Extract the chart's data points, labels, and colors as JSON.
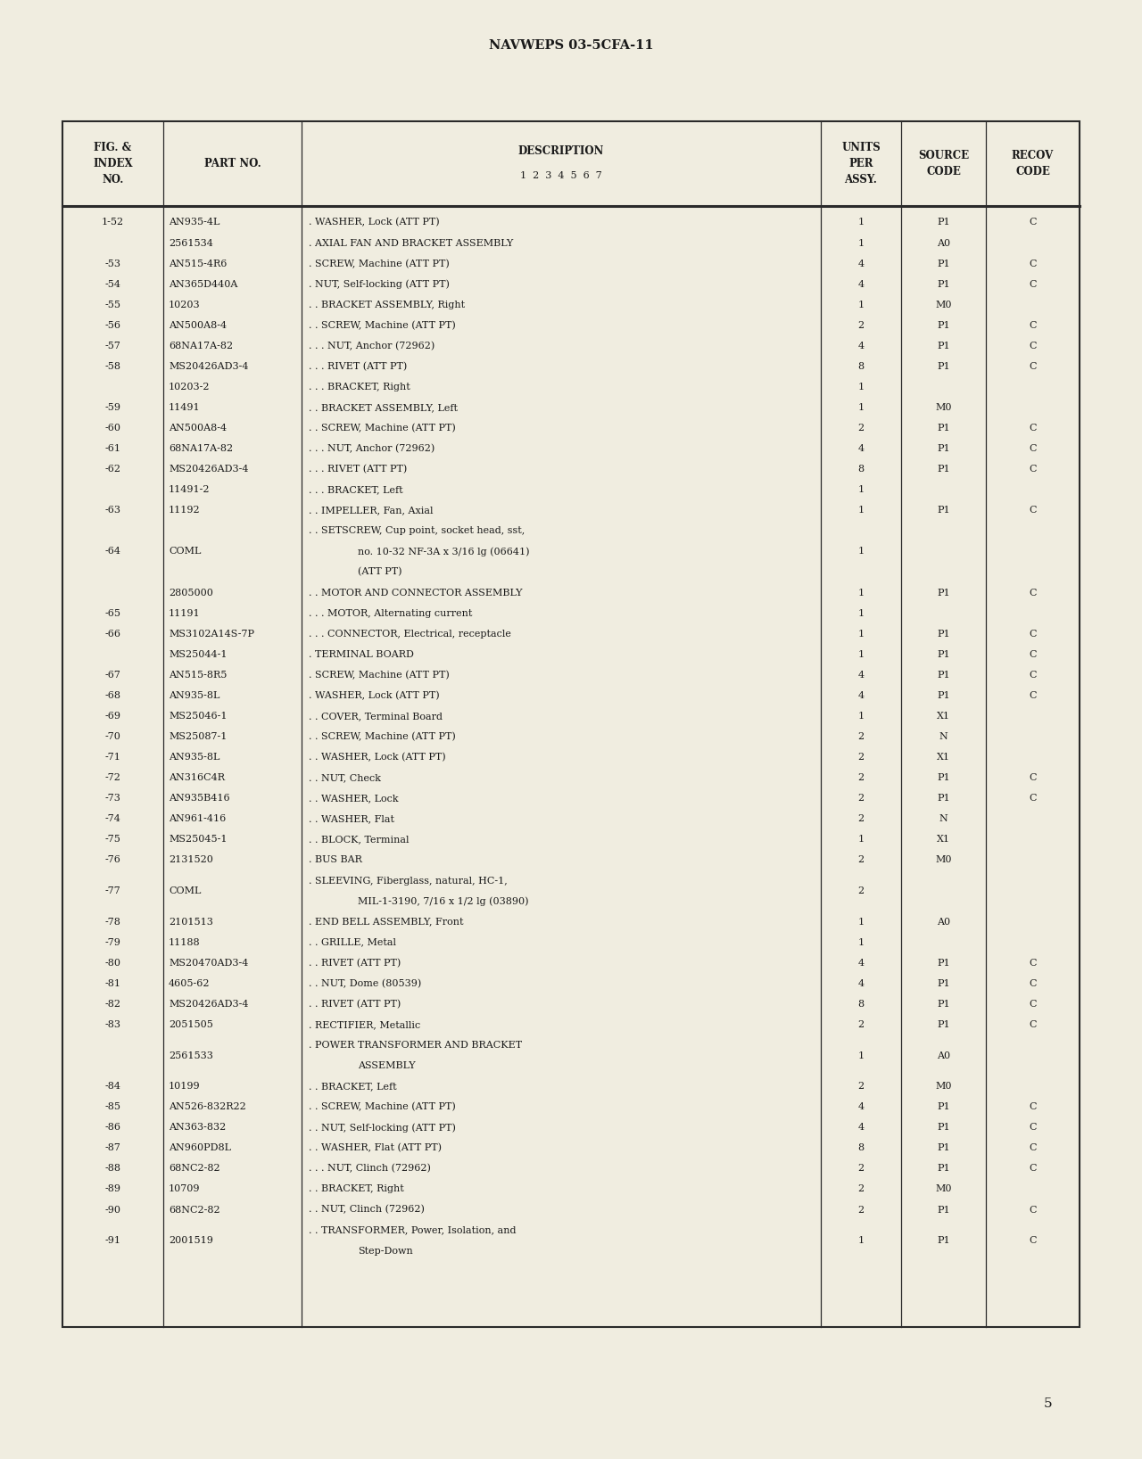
{
  "page_header": "NAVWEPS 03-5CFA-11",
  "page_number": "5",
  "bg_color": "#f0ede0",
  "text_color": "#1a1a1a",
  "rows": [
    {
      "fig": "1-52",
      "part": "AN935-4L",
      "indent": 0,
      "desc": [
        "WASHER, Lock (ATT PT)"
      ],
      "units": "1",
      "source": "P1",
      "recov": "C"
    },
    {
      "fig": "",
      "part": "2561534",
      "indent": 0,
      "desc": [
        "AXIAL FAN AND BRACKET ASSEMBLY"
      ],
      "units": "1",
      "source": "A0",
      "recov": ""
    },
    {
      "fig": "-53",
      "part": "AN515-4R6",
      "indent": 0,
      "desc": [
        "SCREW, Machine (ATT PT)"
      ],
      "units": "4",
      "source": "P1",
      "recov": "C"
    },
    {
      "fig": "-54",
      "part": "AN365D440A",
      "indent": 0,
      "desc": [
        "NUT, Self-locking (ATT PT)"
      ],
      "units": "4",
      "source": "P1",
      "recov": "C"
    },
    {
      "fig": "-55",
      "part": "10203",
      "indent": 1,
      "desc": [
        "BRACKET ASSEMBLY, Right"
      ],
      "units": "1",
      "source": "M0",
      "recov": ""
    },
    {
      "fig": "-56",
      "part": "AN500A8-4",
      "indent": 1,
      "desc": [
        "SCREW, Machine (ATT PT)"
      ],
      "units": "2",
      "source": "P1",
      "recov": "C"
    },
    {
      "fig": "-57",
      "part": "68NA17A-82",
      "indent": 2,
      "desc": [
        "NUT, Anchor (72962)"
      ],
      "units": "4",
      "source": "P1",
      "recov": "C"
    },
    {
      "fig": "-58",
      "part": "MS20426AD3-4",
      "indent": 2,
      "desc": [
        "RIVET (ATT PT)"
      ],
      "units": "8",
      "source": "P1",
      "recov": "C"
    },
    {
      "fig": "",
      "part": "10203-2",
      "indent": 2,
      "desc": [
        "BRACKET, Right"
      ],
      "units": "1",
      "source": "",
      "recov": ""
    },
    {
      "fig": "-59",
      "part": "11491",
      "indent": 1,
      "desc": [
        "BRACKET ASSEMBLY, Left"
      ],
      "units": "1",
      "source": "M0",
      "recov": ""
    },
    {
      "fig": "-60",
      "part": "AN500A8-4",
      "indent": 1,
      "desc": [
        "SCREW, Machine (ATT PT)"
      ],
      "units": "2",
      "source": "P1",
      "recov": "C"
    },
    {
      "fig": "-61",
      "part": "68NA17A-82",
      "indent": 2,
      "desc": [
        "NUT, Anchor (72962)"
      ],
      "units": "4",
      "source": "P1",
      "recov": "C"
    },
    {
      "fig": "-62",
      "part": "MS20426AD3-4",
      "indent": 2,
      "desc": [
        "RIVET (ATT PT)"
      ],
      "units": "8",
      "source": "P1",
      "recov": "C"
    },
    {
      "fig": "",
      "part": "11491-2",
      "indent": 2,
      "desc": [
        "BRACKET, Left"
      ],
      "units": "1",
      "source": "",
      "recov": ""
    },
    {
      "fig": "-63",
      "part": "11192",
      "indent": 1,
      "desc": [
        "IMPELLER, Fan, Axial"
      ],
      "units": "1",
      "source": "P1",
      "recov": "C"
    },
    {
      "fig": "-64",
      "part": "COML",
      "indent": 1,
      "desc": [
        "SETSCREW, Cup point, socket head, sst,",
        "no. 10-32 NF-3A x 3/16 lg (06641)",
        "(ATT PT)"
      ],
      "units": "1",
      "source": "",
      "recov": ""
    },
    {
      "fig": "",
      "part": "2805000",
      "indent": 1,
      "desc": [
        "MOTOR AND CONNECTOR ASSEMBLY"
      ],
      "units": "1",
      "source": "P1",
      "recov": "C"
    },
    {
      "fig": "-65",
      "part": "11191",
      "indent": 2,
      "desc": [
        "MOTOR, Alternating current"
      ],
      "units": "1",
      "source": "",
      "recov": ""
    },
    {
      "fig": "-66",
      "part": "MS3102A14S-7P",
      "indent": 2,
      "desc": [
        "CONNECTOR, Electrical, receptacle"
      ],
      "units": "1",
      "source": "P1",
      "recov": "C"
    },
    {
      "fig": "",
      "part": "MS25044-1",
      "indent": 0,
      "desc": [
        "TERMINAL BOARD"
      ],
      "units": "1",
      "source": "P1",
      "recov": "C"
    },
    {
      "fig": "-67",
      "part": "AN515-8R5",
      "indent": 0,
      "desc": [
        "SCREW, Machine (ATT PT)"
      ],
      "units": "4",
      "source": "P1",
      "recov": "C"
    },
    {
      "fig": "-68",
      "part": "AN935-8L",
      "indent": 0,
      "desc": [
        "WASHER, Lock (ATT PT)"
      ],
      "units": "4",
      "source": "P1",
      "recov": "C"
    },
    {
      "fig": "-69",
      "part": "MS25046-1",
      "indent": 1,
      "desc": [
        "COVER, Terminal Board"
      ],
      "units": "1",
      "source": "X1",
      "recov": ""
    },
    {
      "fig": "-70",
      "part": "MS25087-1",
      "indent": 1,
      "desc": [
        "SCREW, Machine (ATT PT)"
      ],
      "units": "2",
      "source": "N",
      "recov": ""
    },
    {
      "fig": "-71",
      "part": "AN935-8L",
      "indent": 1,
      "desc": [
        "WASHER, Lock (ATT PT)"
      ],
      "units": "2",
      "source": "X1",
      "recov": ""
    },
    {
      "fig": "-72",
      "part": "AN316C4R",
      "indent": 1,
      "desc": [
        "NUT, Check"
      ],
      "units": "2",
      "source": "P1",
      "recov": "C"
    },
    {
      "fig": "-73",
      "part": "AN935B416",
      "indent": 1,
      "desc": [
        "WASHER, Lock"
      ],
      "units": "2",
      "source": "P1",
      "recov": "C"
    },
    {
      "fig": "-74",
      "part": "AN961-416",
      "indent": 1,
      "desc": [
        "WASHER, Flat"
      ],
      "units": "2",
      "source": "N",
      "recov": ""
    },
    {
      "fig": "-75",
      "part": "MS25045-1",
      "indent": 1,
      "desc": [
        "BLOCK, Terminal"
      ],
      "units": "1",
      "source": "X1",
      "recov": ""
    },
    {
      "fig": "-76",
      "part": "2131520",
      "indent": 0,
      "desc": [
        "BUS BAR"
      ],
      "units": "2",
      "source": "M0",
      "recov": ""
    },
    {
      "fig": "-77",
      "part": "COML",
      "indent": 0,
      "desc": [
        "SLEEVING, Fiberglass, natural, HC-1,",
        "MIL-1-3190, 7/16 x 1/2 lg (03890)"
      ],
      "units": "2",
      "source": "",
      "recov": ""
    },
    {
      "fig": "-78",
      "part": "2101513",
      "indent": 0,
      "desc": [
        "END BELL ASSEMBLY, Front"
      ],
      "units": "1",
      "source": "A0",
      "recov": ""
    },
    {
      "fig": "-79",
      "part": "11188",
      "indent": 1,
      "desc": [
        "GRILLE, Metal"
      ],
      "units": "1",
      "source": "",
      "recov": ""
    },
    {
      "fig": "-80",
      "part": "MS20470AD3-4",
      "indent": 1,
      "desc": [
        "RIVET (ATT PT)"
      ],
      "units": "4",
      "source": "P1",
      "recov": "C"
    },
    {
      "fig": "-81",
      "part": "4605-62",
      "indent": 1,
      "desc": [
        "NUT, Dome (80539)"
      ],
      "units": "4",
      "source": "P1",
      "recov": "C"
    },
    {
      "fig": "-82",
      "part": "MS20426AD3-4",
      "indent": 1,
      "desc": [
        "RIVET (ATT PT)"
      ],
      "units": "8",
      "source": "P1",
      "recov": "C"
    },
    {
      "fig": "-83",
      "part": "2051505",
      "indent": 0,
      "desc": [
        "RECTIFIER, Metallic"
      ],
      "units": "2",
      "source": "P1",
      "recov": "C"
    },
    {
      "fig": "",
      "part": "2561533",
      "indent": 0,
      "desc": [
        "POWER TRANSFORMER AND BRACKET",
        "ASSEMBLY"
      ],
      "units": "1",
      "source": "A0",
      "recov": ""
    },
    {
      "fig": "-84",
      "part": "10199",
      "indent": 1,
      "desc": [
        "BRACKET, Left"
      ],
      "units": "2",
      "source": "M0",
      "recov": ""
    },
    {
      "fig": "-85",
      "part": "AN526-832R22",
      "indent": 1,
      "desc": [
        "SCREW, Machine (ATT PT)"
      ],
      "units": "4",
      "source": "P1",
      "recov": "C"
    },
    {
      "fig": "-86",
      "part": "AN363-832",
      "indent": 1,
      "desc": [
        "NUT, Self-locking (ATT PT)"
      ],
      "units": "4",
      "source": "P1",
      "recov": "C"
    },
    {
      "fig": "-87",
      "part": "AN960PD8L",
      "indent": 1,
      "desc": [
        "WASHER, Flat (ATT PT)"
      ],
      "units": "8",
      "source": "P1",
      "recov": "C"
    },
    {
      "fig": "-88",
      "part": "68NC2-82",
      "indent": 2,
      "desc": [
        "NUT, Clinch (72962)"
      ],
      "units": "2",
      "source": "P1",
      "recov": "C"
    },
    {
      "fig": "-89",
      "part": "10709",
      "indent": 1,
      "desc": [
        "BRACKET, Right"
      ],
      "units": "2",
      "source": "M0",
      "recov": ""
    },
    {
      "fig": "-90",
      "part": "68NC2-82",
      "indent": 1,
      "desc": [
        "NUT, Clinch (72962)"
      ],
      "units": "2",
      "source": "P1",
      "recov": "C"
    },
    {
      "fig": "-91",
      "part": "2001519",
      "indent": 1,
      "desc": [
        "TRANSFORMER, Power, Isolation, and",
        "Step-Down"
      ],
      "units": "1",
      "source": "P1",
      "recov": "C"
    }
  ]
}
